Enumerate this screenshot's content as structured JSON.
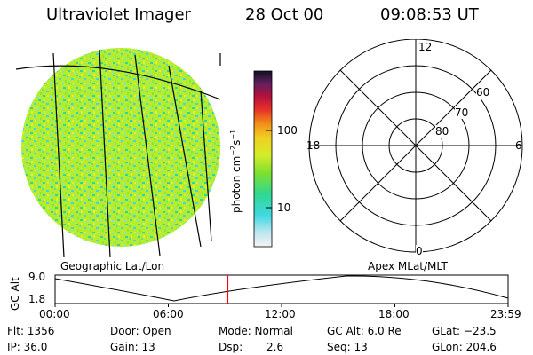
{
  "header": {
    "title": "Ultraviolet Imager",
    "date": "28 Oct 00",
    "time": "09:08:53 UT"
  },
  "colorbar": {
    "unit_prefix": "photon cm",
    "exp1": "−2",
    "mid": "s",
    "exp2": "−1",
    "ticks": [
      "100",
      "10"
    ],
    "scale": "log"
  },
  "left_panel": {
    "label": "Geographic Lat/Lon"
  },
  "right_panel": {
    "label": "Apex MLat/MLT",
    "mlt_labels": {
      "top": "12",
      "right": "6",
      "bottom": "0",
      "left": "18"
    },
    "lat_labels": [
      "60",
      "70",
      "80"
    ]
  },
  "gc_alt_plot": {
    "ylabel": "GC Alt",
    "yticks": [
      "9.0",
      "1.8"
    ],
    "xticks": [
      "00:00",
      "06:00",
      "12:00",
      "18:00",
      "23:59"
    ],
    "current_time_marker_hours": 9.15,
    "marker_color": "#ff0000"
  },
  "info": {
    "flt": "Flt: 1356",
    "ip": "IP: 36.0",
    "door": "Door: Open",
    "gain": "Gain: 13",
    "mode": "Mode: Normal",
    "dsp_label": "Dsp:",
    "dsp_value": "2.6",
    "gcalt": "GC Alt: 6.0 Re",
    "seq": "Seq: 13",
    "glat": "GLat: −23.5",
    "glon": "GLon: 204.6"
  }
}
